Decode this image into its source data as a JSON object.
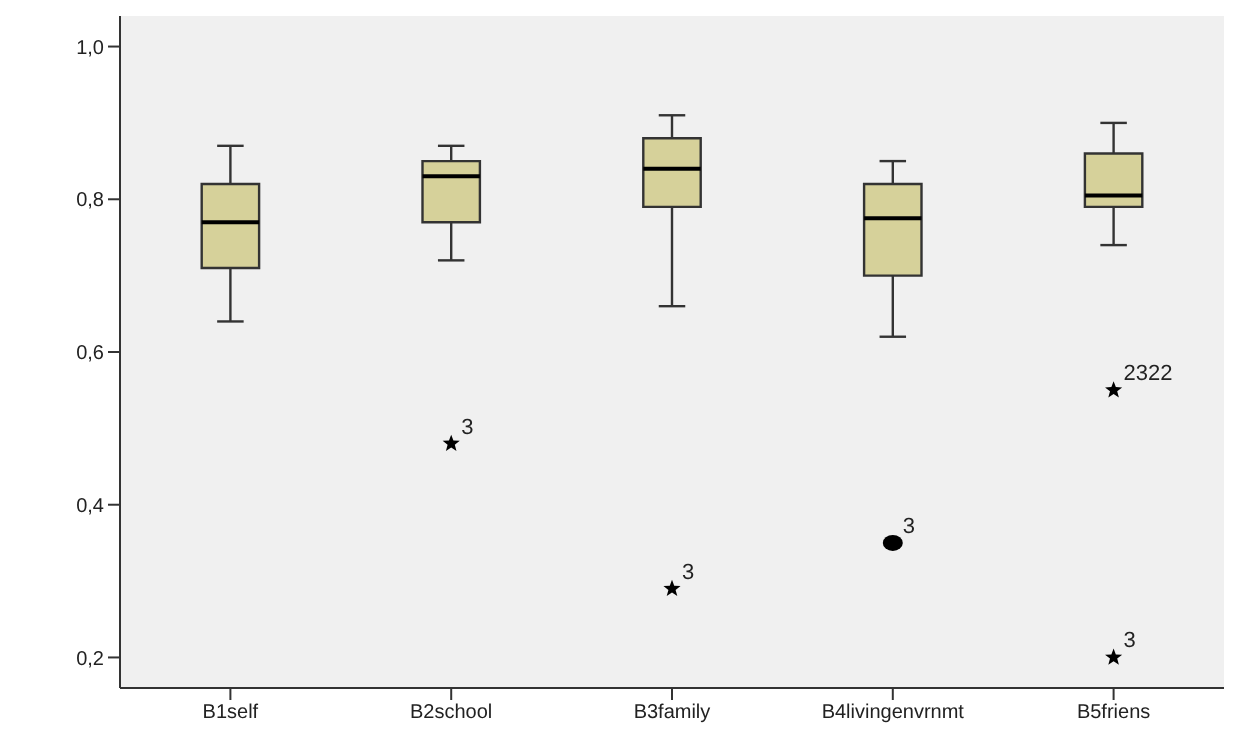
{
  "chart_data": {
    "type": "box",
    "categories": [
      "B1self",
      "B2school",
      "B3family",
      "B4livingenvrnmt",
      "B5friens"
    ],
    "boxes": [
      {
        "low": 0.64,
        "q1": 0.71,
        "median": 0.77,
        "q3": 0.82,
        "high": 0.87
      },
      {
        "low": 0.72,
        "q1": 0.77,
        "median": 0.83,
        "q3": 0.85,
        "high": 0.87
      },
      {
        "low": 0.66,
        "q1": 0.79,
        "median": 0.84,
        "q3": 0.88,
        "high": 0.91
      },
      {
        "low": 0.62,
        "q1": 0.7,
        "median": 0.775,
        "q3": 0.82,
        "high": 0.85
      },
      {
        "low": 0.74,
        "q1": 0.79,
        "median": 0.805,
        "q3": 0.86,
        "high": 0.9
      }
    ],
    "color": "#d6d19a",
    "series": [
      {
        "type": "scatter",
        "marker": "star",
        "color": "#000000",
        "x": [
          "B2school",
          "B3family",
          "B5friens",
          "B5friens"
        ],
        "values": [
          0.48,
          0.29,
          0.55,
          0.2
        ]
      },
      {
        "type": "scatter",
        "marker": "circle",
        "color": "#000000",
        "x": [
          "B4livingenvrnmt"
        ],
        "values": [
          0.35
        ]
      }
    ],
    "annotations": [
      {
        "text": "3",
        "x": "B2school",
        "y": 0.48
      },
      {
        "text": "3",
        "x": "B3family",
        "y": 0.29
      },
      {
        "text": "3",
        "x": "B4livingenvrnmt",
        "y": 0.35
      },
      {
        "text": "2322",
        "x": "B5friens",
        "y": 0.55
      },
      {
        "text": "3",
        "x": "B5friens",
        "y": 0.2
      }
    ],
    "ylim": [
      0.16,
      1.04
    ],
    "yticks": [
      {
        "value": 0.2,
        "label": "0,2"
      },
      {
        "value": 0.4,
        "label": "0,4"
      },
      {
        "value": 0.6,
        "label": "0,6"
      },
      {
        "value": 0.8,
        "label": "0,8"
      },
      {
        "value": 1.0,
        "label": "1,0"
      }
    ],
    "grid": false
  }
}
